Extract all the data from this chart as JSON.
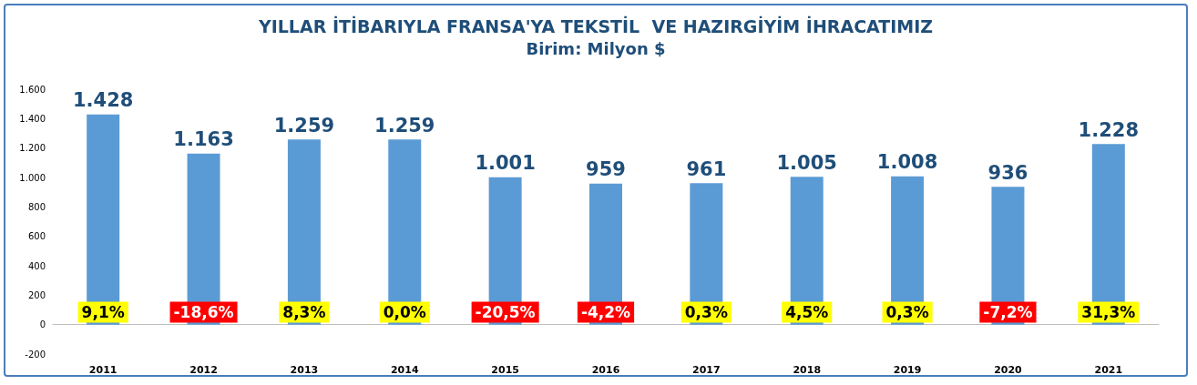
{
  "chart_data": {
    "type": "bar",
    "title": "YILLAR İTİBARIYLA FRANSA'YA TEKSTİL  VE HAZIRGİYİM İHRACATIMIZ",
    "subtitle": "Birim: Milyon $",
    "categories": [
      "2011",
      "2012",
      "2013",
      "2014",
      "2015",
      "2016",
      "2017",
      "2018",
      "2019",
      "2020",
      "2021"
    ],
    "values": [
      1428,
      1163,
      1259,
      1259,
      1001,
      959,
      961,
      1005,
      1008,
      936,
      1228
    ],
    "value_labels": [
      "1.428",
      "1.163",
      "1.259",
      "1.259",
      "1.001",
      "959",
      "961",
      "1.005",
      "1.008",
      "936",
      "1.228"
    ],
    "color": "#5b9bd5",
    "ylim": [
      -200,
      1600
    ],
    "yticks": [
      {
        "value": -200,
        "label": "-200"
      },
      {
        "value": 0,
        "label": "0"
      },
      {
        "value": 200,
        "label": "200"
      },
      {
        "value": 400,
        "label": "400"
      },
      {
        "value": 600,
        "label": "600"
      },
      {
        "value": 800,
        "label": "800"
      },
      {
        "value": 1000,
        "label": "1.000"
      },
      {
        "value": 1200,
        "label": "1.200"
      },
      {
        "value": 1400,
        "label": "1.400"
      },
      {
        "value": 1600,
        "label": "1.600"
      }
    ],
    "annotations": [
      "9,1%",
      "-18,6%",
      "8,3%",
      "0,0%",
      "-20,5%",
      "-4,2%",
      "0,3%",
      "4,5%",
      "0,3%",
      "-7,2%",
      "31,3%"
    ]
  }
}
